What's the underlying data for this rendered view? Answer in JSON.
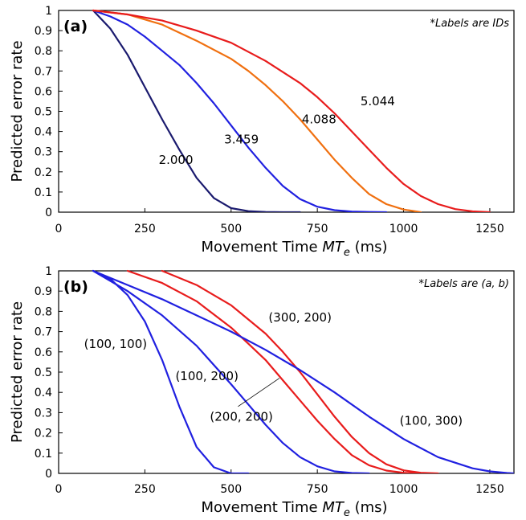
{
  "chart_data": [
    {
      "type": "line",
      "panel_label": "(a)",
      "note": "*Labels are IDs",
      "xlabel": {
        "main": "Movement Time ",
        "var": "MT",
        "sub": "e",
        "unit": " (ms)"
      },
      "ylabel": "Predicted error rate",
      "xlim": [
        0,
        1320
      ],
      "ylim": [
        0,
        1
      ],
      "xticks": [
        "0",
        "250",
        "500",
        "750",
        "1000",
        "1250"
      ],
      "xtick_values": [
        0,
        250,
        500,
        750,
        1000,
        1250
      ],
      "yticks": [
        "0",
        "0.1",
        "0.2",
        "0.3",
        "0.4",
        "0.5",
        "0.6",
        "0.7",
        "0.8",
        "0.9",
        "1"
      ],
      "ytick_values": [
        0,
        0.1,
        0.2,
        0.3,
        0.4,
        0.5,
        0.6,
        0.7,
        0.8,
        0.9,
        1
      ],
      "grid": false,
      "series": [
        {
          "label": "2.000",
          "color": "#1a1a6e",
          "x": [
            100,
            150,
            200,
            250,
            300,
            350,
            400,
            450,
            500,
            550,
            600,
            650,
            700
          ],
          "y": [
            1.0,
            0.91,
            0.78,
            0.62,
            0.46,
            0.31,
            0.17,
            0.07,
            0.02,
            0.005,
            0.001,
            0.0,
            0.0
          ]
        },
        {
          "label": "3.459",
          "color": "#2020e0",
          "x": [
            100,
            150,
            200,
            250,
            300,
            350,
            400,
            450,
            500,
            550,
            600,
            650,
            700,
            750,
            800,
            850,
            900,
            950
          ],
          "y": [
            1.0,
            0.97,
            0.93,
            0.87,
            0.8,
            0.73,
            0.64,
            0.54,
            0.43,
            0.32,
            0.22,
            0.13,
            0.065,
            0.027,
            0.01,
            0.003,
            0.001,
            0.0
          ]
        },
        {
          "label": "4.088",
          "color": "#f07010",
          "x": [
            100,
            200,
            300,
            400,
            500,
            550,
            600,
            650,
            700,
            750,
            800,
            850,
            900,
            950,
            1000,
            1050
          ],
          "y": [
            1.0,
            0.98,
            0.93,
            0.85,
            0.76,
            0.7,
            0.63,
            0.55,
            0.46,
            0.36,
            0.26,
            0.17,
            0.09,
            0.04,
            0.013,
            0.0
          ]
        },
        {
          "label": "5.044",
          "color": "#e81c1c",
          "x": [
            100,
            200,
            300,
            400,
            500,
            600,
            700,
            750,
            800,
            850,
            900,
            950,
            1000,
            1050,
            1100,
            1150,
            1200,
            1250
          ],
          "y": [
            1.0,
            0.98,
            0.95,
            0.9,
            0.84,
            0.75,
            0.64,
            0.57,
            0.49,
            0.4,
            0.31,
            0.22,
            0.14,
            0.08,
            0.04,
            0.015,
            0.004,
            0.0
          ]
        }
      ],
      "annotations": [
        {
          "text": "2.000",
          "x": 340,
          "y": 0.24
        },
        {
          "text": "3.459",
          "x": 530,
          "y": 0.34
        },
        {
          "text": "4.088",
          "x": 755,
          "y": 0.44
        },
        {
          "text": "5.044",
          "x": 925,
          "y": 0.53
        }
      ]
    },
    {
      "type": "line",
      "panel_label": "(b)",
      "note": "*Labels are (a, b)",
      "xlabel": {
        "main": "Movement Time ",
        "var": "MT",
        "sub": "e",
        "unit": " (ms)"
      },
      "ylabel": "Predicted error rate",
      "xlim": [
        0,
        1320
      ],
      "ylim": [
        0,
        1
      ],
      "xticks": [
        "0",
        "250",
        "500",
        "750",
        "1000",
        "1250"
      ],
      "xtick_values": [
        0,
        250,
        500,
        750,
        1000,
        1250
      ],
      "yticks": [
        "0",
        "0.1",
        "0.2",
        "0.3",
        "0.4",
        "0.5",
        "0.6",
        "0.7",
        "0.8",
        "0.9",
        "1"
      ],
      "ytick_values": [
        0,
        0.1,
        0.2,
        0.3,
        0.4,
        0.5,
        0.6,
        0.7,
        0.8,
        0.9,
        1
      ],
      "grid": false,
      "series": [
        {
          "label": "(100, 100)",
          "color": "#2020e0",
          "x": [
            100,
            150,
            200,
            250,
            300,
            350,
            400,
            450,
            500,
            550
          ],
          "y": [
            1.0,
            0.96,
            0.88,
            0.75,
            0.56,
            0.33,
            0.13,
            0.03,
            0.0,
            0.0
          ]
        },
        {
          "label": "(100, 200)",
          "color": "#2020e0",
          "x": [
            100,
            200,
            300,
            400,
            500,
            550,
            600,
            650,
            700,
            750,
            800,
            850,
            900
          ],
          "y": [
            1.0,
            0.9,
            0.78,
            0.63,
            0.44,
            0.34,
            0.24,
            0.15,
            0.08,
            0.035,
            0.01,
            0.002,
            0.0
          ]
        },
        {
          "label": "(200, 200)",
          "color": "#e81c1c",
          "x": [
            200,
            300,
            400,
            500,
            550,
            600,
            650,
            700,
            750,
            800,
            850,
            900,
            950,
            1000,
            1050
          ],
          "y": [
            1.0,
            0.94,
            0.85,
            0.72,
            0.64,
            0.56,
            0.46,
            0.36,
            0.26,
            0.17,
            0.09,
            0.04,
            0.014,
            0.003,
            0.0
          ]
        },
        {
          "label": "(300, 200)",
          "color": "#e81c1c",
          "x": [
            300,
            400,
            500,
            600,
            650,
            700,
            750,
            800,
            850,
            900,
            950,
            1000,
            1050,
            1100
          ],
          "y": [
            1.0,
            0.93,
            0.83,
            0.69,
            0.6,
            0.5,
            0.39,
            0.28,
            0.18,
            0.1,
            0.045,
            0.015,
            0.003,
            0.0
          ]
        },
        {
          "label": "(100, 300)",
          "color": "#2020e0",
          "x": [
            100,
            200,
            300,
            400,
            500,
            600,
            700,
            800,
            900,
            1000,
            1100,
            1200,
            1250,
            1300,
            1320
          ],
          "y": [
            1.0,
            0.93,
            0.86,
            0.78,
            0.7,
            0.61,
            0.51,
            0.4,
            0.28,
            0.17,
            0.08,
            0.025,
            0.01,
            0.002,
            0.0
          ]
        }
      ],
      "annotations": [
        {
          "text": "(100, 100)",
          "x": 165,
          "y": 0.62
        },
        {
          "text": "(100, 200)",
          "x": 430,
          "y": 0.46
        },
        {
          "text": "(200, 200)",
          "x": 530,
          "y": 0.26
        },
        {
          "text": "(300, 200)",
          "x": 700,
          "y": 0.75
        },
        {
          "text": "(100, 300)",
          "x": 1080,
          "y": 0.24
        }
      ],
      "leader_line": {
        "from": [
          520,
          0.33
        ],
        "to": [
          640,
          0.47
        ]
      }
    }
  ]
}
